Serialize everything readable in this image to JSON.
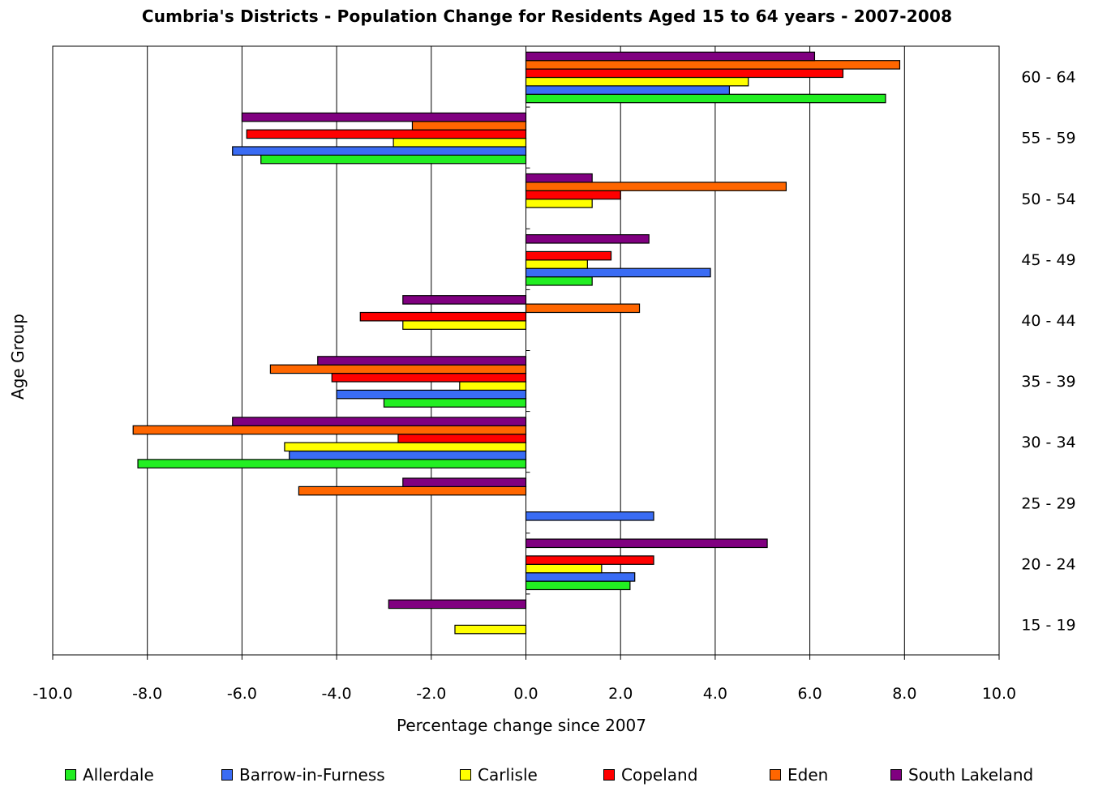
{
  "chart_data": {
    "type": "bar",
    "orientation": "horizontal",
    "title": "Cumbria's Districts - Population Change for Residents Aged 15 to 64 years - 2007-2008",
    "xlabel": "Percentage change since 2007",
    "ylabel": "Age Group",
    "xlim": [
      -10,
      10
    ],
    "x_ticks": [
      "-10.0",
      "-8.0",
      "-6.0",
      "-4.0",
      "-2.0",
      "0.0",
      "2.0",
      "4.0",
      "6.0",
      "8.0",
      "10.0"
    ],
    "grid": "vertical",
    "legend_position": "bottom",
    "categories": [
      "15 - 19",
      "20 - 24",
      "25 - 29",
      "30 - 34",
      "35 - 39",
      "40 - 44",
      "45 - 49",
      "50 - 54",
      "55 - 59",
      "60 - 64"
    ],
    "series": [
      {
        "name": "Allerdale",
        "color": "#22ee22",
        "values": [
          0,
          2.2,
          0,
          -8.2,
          -3.0,
          0,
          1.4,
          0,
          -5.6,
          7.6
        ]
      },
      {
        "name": "Barrow-in-Furness",
        "color": "#3a6cf4",
        "values": [
          0,
          2.3,
          2.7,
          -5.0,
          -4.0,
          0,
          3.9,
          0,
          -6.2,
          4.3
        ]
      },
      {
        "name": "Carlisle",
        "color": "#ffff00",
        "values": [
          -1.5,
          1.6,
          0,
          -5.1,
          -1.4,
          -2.6,
          1.3,
          1.4,
          -2.8,
          4.7
        ]
      },
      {
        "name": "Copeland",
        "color": "#ff0000",
        "values": [
          0,
          2.7,
          0,
          -2.7,
          -4.1,
          -3.5,
          1.8,
          2.0,
          -5.9,
          6.7
        ]
      },
      {
        "name": "Eden",
        "color": "#ff6600",
        "values": [
          0,
          0,
          -4.8,
          -8.3,
          -5.4,
          2.4,
          0,
          5.5,
          -2.4,
          7.9
        ]
      },
      {
        "name": "South Lakeland",
        "color": "#800080",
        "values": [
          -2.9,
          5.1,
          -2.6,
          -6.2,
          -4.4,
          -2.6,
          2.6,
          1.4,
          -6.0,
          6.1
        ]
      }
    ]
  }
}
